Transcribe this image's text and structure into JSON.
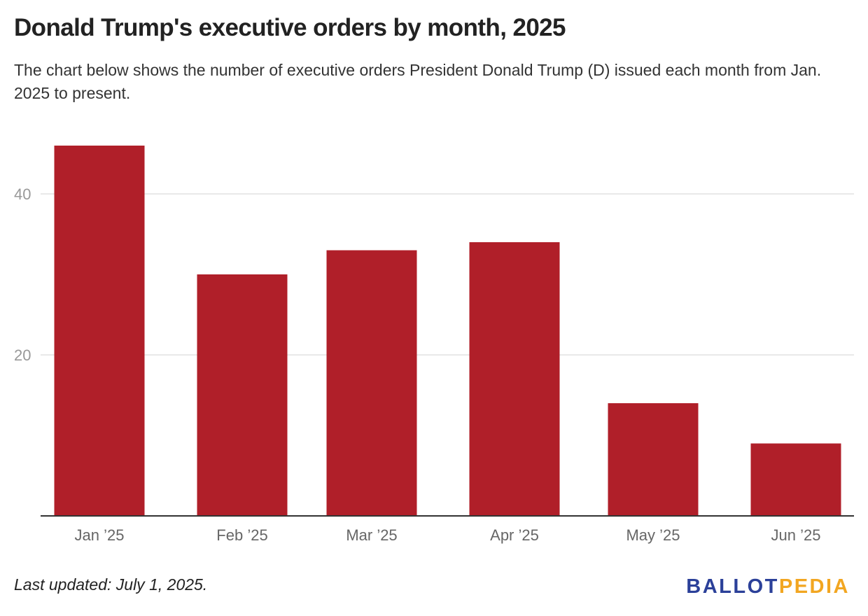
{
  "title": "Donald Trump's executive orders by month, 2025",
  "subtitle": "The chart below shows the number of executive orders President Donald Trump (D) issued each month from Jan. 2025 to present.",
  "footer": "Last updated: July 1, 2025.",
  "logo": {
    "part1": "BALLOT",
    "part2": "PEDIA",
    "colors": {
      "part1": "#2b4099",
      "part2": "#f2a621"
    }
  },
  "chart_data": {
    "type": "bar",
    "categories": [
      "Jan ’25",
      "Feb ’25",
      "Mar ’25",
      "Apr ’25",
      "May ’25",
      "Jun ’25"
    ],
    "values": [
      46,
      30,
      33,
      34,
      14,
      9
    ],
    "ylim": [
      0,
      48
    ],
    "yticks": [
      20,
      40
    ],
    "xlabel": "",
    "ylabel": "",
    "grid": true,
    "bar_color": "#b01f29"
  }
}
